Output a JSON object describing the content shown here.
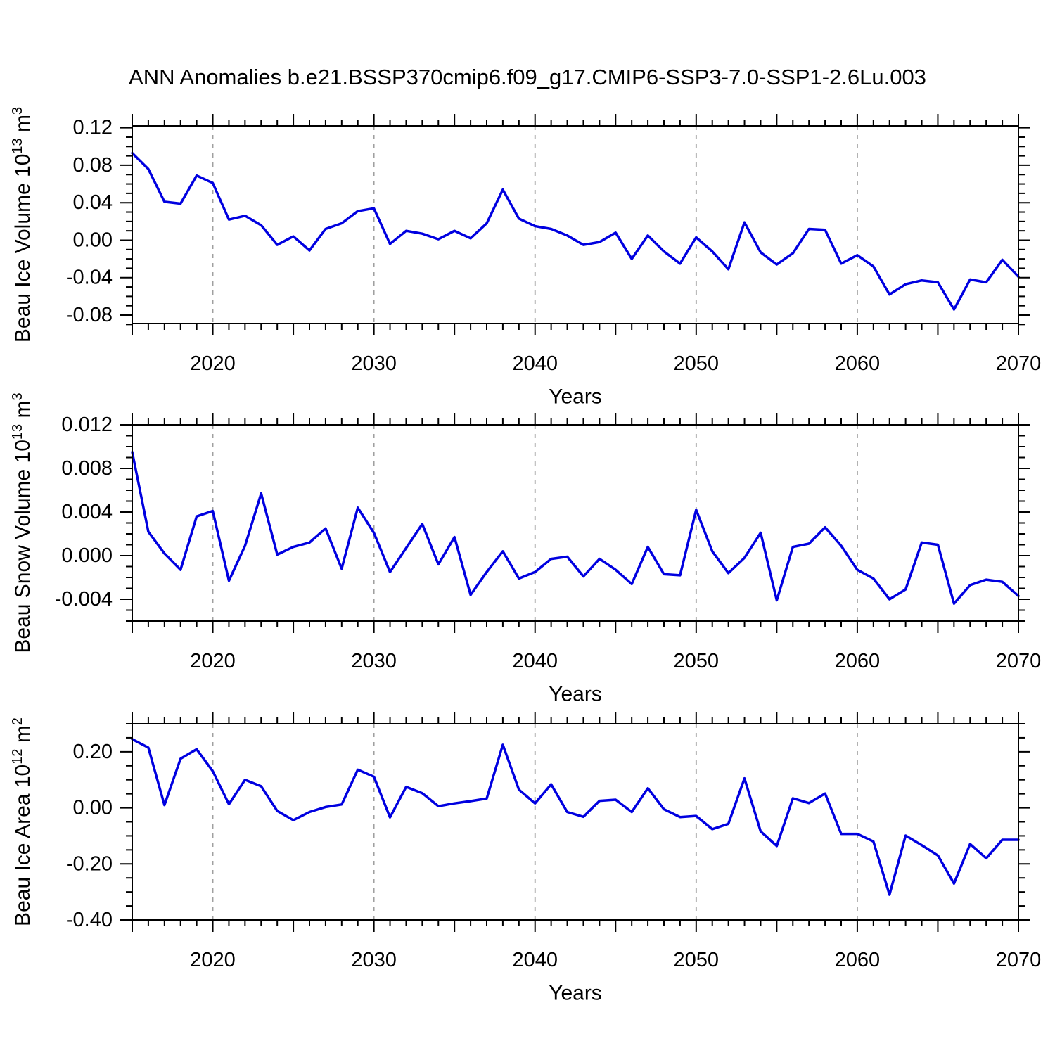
{
  "title": "ANN Anomalies b.e21.BSSP370cmip6.f09_g17.CMIP6-SSP3-7.0-SSP1-2.6Lu.003",
  "figure": {
    "background": "#ffffff",
    "line_color": "#0000e0",
    "grid_color": "#a0a0a0",
    "axis_color": "#000000",
    "text_color": "#000000"
  },
  "chart_data": [
    {
      "id": "beau-ice-volume",
      "type": "line",
      "ylabel": "Beau Ice Volume 10^13 m^3",
      "ylabel_parts": [
        {
          "text": "Beau Ice Volume 10"
        },
        {
          "text": "13",
          "sup": true
        },
        {
          "text": " m"
        },
        {
          "text": "3",
          "sup": true
        }
      ],
      "xlabel": "Years",
      "x_start": 2015,
      "x_end": 2070,
      "x_step": 1,
      "xtick_labels": [
        "2020",
        "2030",
        "2040",
        "2050",
        "2060",
        "2070"
      ],
      "grid_years": [
        2020,
        2030,
        2040,
        2050,
        2060
      ],
      "yticks": [
        0.12,
        0.08,
        0.04,
        0.0,
        -0.04,
        -0.08
      ],
      "ytick_labels": [
        "0.12",
        "0.08",
        "0.04",
        "0.00",
        "-0.04",
        "-0.08"
      ],
      "y_minor_step": 0.01,
      "ylim": [
        -0.089,
        0.122
      ],
      "values": [
        0.093,
        0.076,
        0.041,
        0.039,
        0.069,
        0.061,
        0.022,
        0.026,
        0.016,
        -0.005,
        0.004,
        -0.011,
        0.012,
        0.018,
        0.031,
        0.034,
        -0.004,
        0.01,
        0.007,
        0.001,
        0.01,
        0.002,
        0.018,
        0.054,
        0.023,
        0.015,
        0.012,
        0.005,
        -0.005,
        -0.002,
        0.008,
        -0.02,
        0.005,
        -0.012,
        -0.025,
        0.003,
        -0.012,
        -0.031,
        0.019,
        -0.013,
        -0.026,
        -0.014,
        0.012,
        0.011,
        -0.025,
        -0.016,
        -0.028,
        -0.058,
        -0.047,
        -0.043,
        -0.045,
        -0.074,
        -0.042,
        -0.045,
        -0.021,
        -0.039
      ]
    },
    {
      "id": "beau-snow-volume",
      "type": "line",
      "ylabel": "Beau Snow Volume 10^13 m^3",
      "ylabel_parts": [
        {
          "text": "Beau Snow Volume 10"
        },
        {
          "text": "13",
          "sup": true
        },
        {
          "text": " m"
        },
        {
          "text": "3",
          "sup": true
        }
      ],
      "xlabel": "Years",
      "x_start": 2015,
      "x_end": 2070,
      "x_step": 1,
      "xtick_labels": [
        "2020",
        "2030",
        "2040",
        "2050",
        "2060",
        "2070"
      ],
      "grid_years": [
        2020,
        2030,
        2040,
        2050,
        2060
      ],
      "yticks": [
        0.012,
        0.008,
        0.004,
        0.0,
        -0.004
      ],
      "ytick_labels": [
        "0.012",
        "0.008",
        "0.004",
        "0.000",
        "-0.004"
      ],
      "y_minor_step": 0.001,
      "ylim": [
        -0.006,
        0.012
      ],
      "values": [
        0.0095,
        0.0022,
        0.0002,
        -0.0013,
        0.0036,
        0.0041,
        -0.0023,
        0.0009,
        0.0057,
        0.0001,
        0.0008,
        0.0012,
        0.0025,
        -0.0012,
        0.0044,
        0.0021,
        -0.0015,
        0.0007,
        0.0029,
        -0.0008,
        0.0017,
        -0.0036,
        -0.0015,
        0.0004,
        -0.0021,
        -0.0015,
        -0.0003,
        -0.0001,
        -0.0019,
        -0.0003,
        -0.0013,
        -0.0026,
        0.0008,
        -0.0017,
        -0.0018,
        0.0042,
        0.0004,
        -0.0016,
        -0.0002,
        0.0021,
        -0.0041,
        0.0008,
        0.0011,
        0.0026,
        0.0009,
        -0.0013,
        -0.0021,
        -0.004,
        -0.0031,
        0.0012,
        0.001,
        -0.0044,
        -0.0027,
        -0.0022,
        -0.0024,
        -0.0037
      ]
    },
    {
      "id": "beau-ice-area",
      "type": "line",
      "ylabel": "Beau Ice Area 10^12 m^2",
      "ylabel_parts": [
        {
          "text": "Beau Ice Area 10"
        },
        {
          "text": "12",
          "sup": true
        },
        {
          "text": " m"
        },
        {
          "text": "2",
          "sup": true
        }
      ],
      "xlabel": "Years",
      "x_start": 2015,
      "x_end": 2070,
      "x_step": 1,
      "xtick_labels": [
        "2020",
        "2030",
        "2040",
        "2050",
        "2060",
        "2070"
      ],
      "grid_years": [
        2020,
        2030,
        2040,
        2050,
        2060
      ],
      "yticks": [
        0.2,
        0.0,
        -0.2,
        -0.4
      ],
      "ytick_labels": [
        "0.20",
        "0.00",
        "-0.20",
        "-0.40"
      ],
      "y_minor_step": 0.05,
      "ylim": [
        -0.4,
        0.3
      ],
      "values": [
        0.245,
        0.215,
        0.01,
        0.175,
        0.209,
        0.131,
        0.013,
        0.1,
        0.077,
        -0.011,
        -0.044,
        -0.015,
        0.003,
        0.012,
        0.136,
        0.111,
        -0.034,
        0.075,
        0.052,
        0.006,
        0.016,
        0.024,
        0.033,
        0.225,
        0.065,
        0.016,
        0.084,
        -0.015,
        -0.032,
        0.025,
        0.029,
        -0.015,
        0.07,
        -0.005,
        -0.033,
        -0.029,
        -0.076,
        -0.057,
        0.105,
        -0.084,
        -0.136,
        0.034,
        0.017,
        0.051,
        -0.093,
        -0.093,
        -0.12,
        -0.31,
        -0.099,
        -0.133,
        -0.17,
        -0.27,
        -0.129,
        -0.18,
        -0.114,
        -0.114
      ]
    }
  ]
}
